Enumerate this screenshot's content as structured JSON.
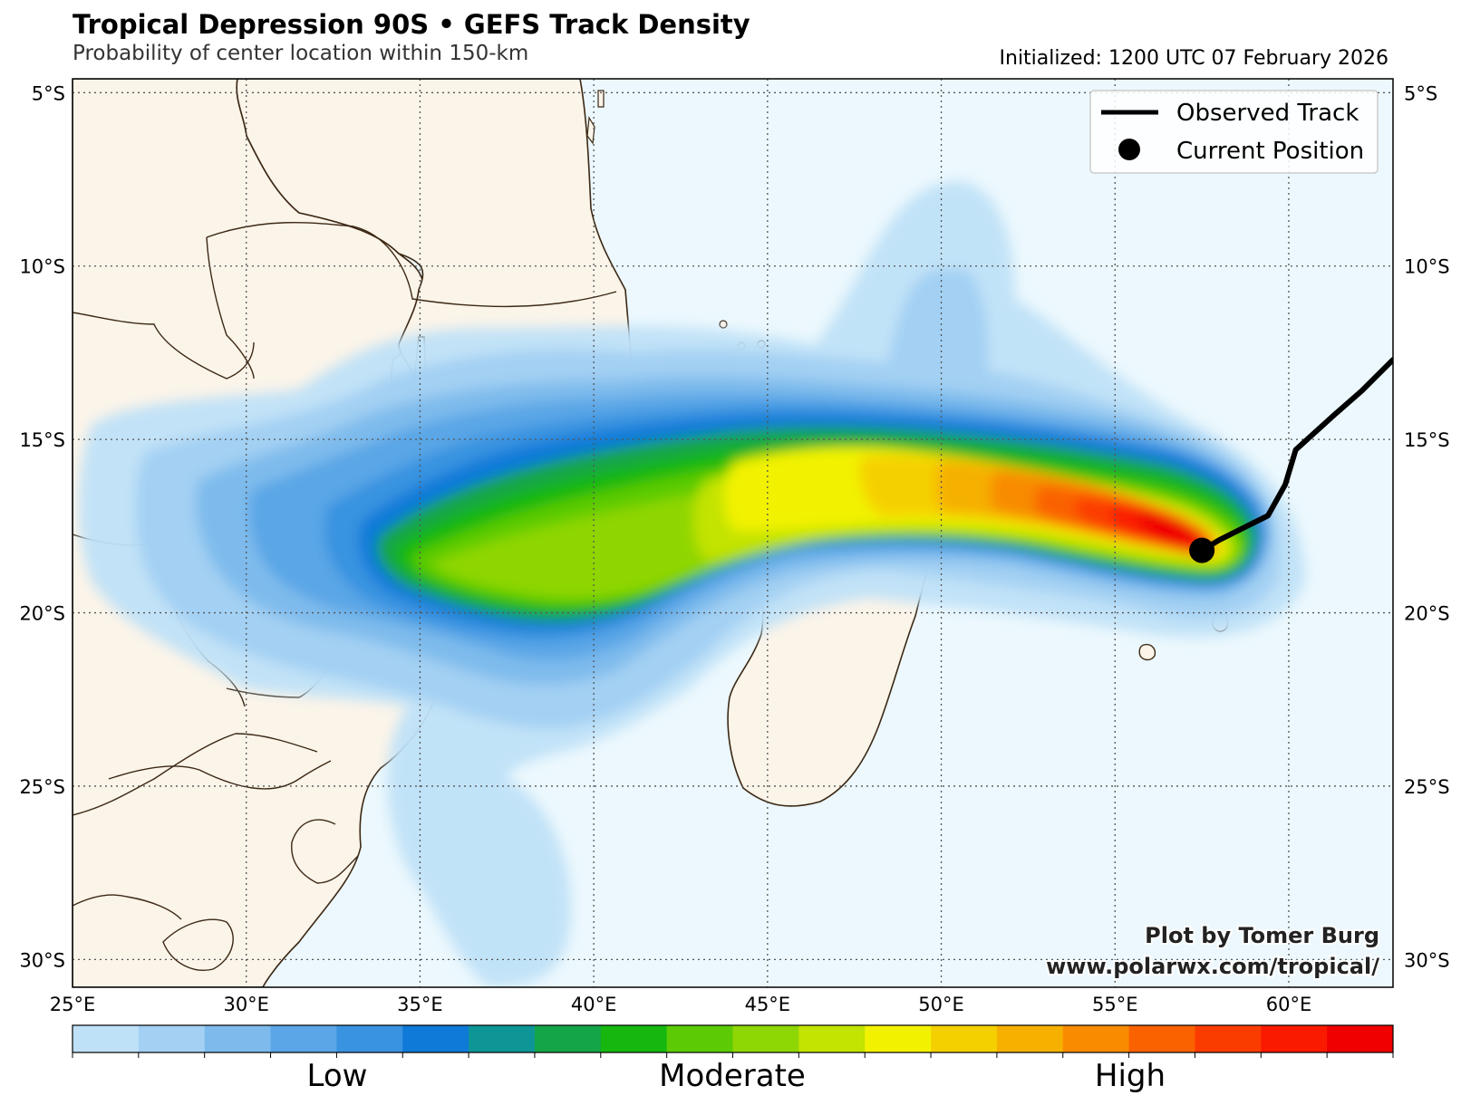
{
  "title": "Tropical Depression 90S • GEFS Track Density",
  "subtitle": "Probability of center location within 150-km",
  "initialized": "Initialized: 1200 UTC 07 February 2026",
  "credit": {
    "line1": "Plot by Tomer Burg",
    "line2": "www.polarwx.com/tropical/"
  },
  "legend": {
    "observed_track": "Observed Track",
    "current_position": "Current Position"
  },
  "lon_labels": [
    "25°E",
    "30°E",
    "35°E",
    "40°E",
    "45°E",
    "50°E",
    "55°E",
    "60°E"
  ],
  "lat_labels": [
    "5°S",
    "10°S",
    "15°S",
    "20°S",
    "25°S",
    "30°S"
  ],
  "colorbar": {
    "labels": {
      "low": "Low",
      "moderate": "Moderate",
      "high": "High"
    },
    "colors": [
      "#bfe1f8",
      "#a3d0f3",
      "#7ebbec",
      "#5aa6e6",
      "#3993e0",
      "#0f7ad8",
      "#0e9596",
      "#14a548",
      "#16b80f",
      "#5ccb05",
      "#8fd605",
      "#c3e300",
      "#f2f200",
      "#f5d000",
      "#f6b000",
      "#f88b00",
      "#fa6200",
      "#fb3c00",
      "#fa1a00",
      "#f00000"
    ]
  },
  "colors": {
    "ocean": "#ecf8fd",
    "land": "#fbf4e9",
    "coast": "#3b2814",
    "track": "#000000"
  },
  "map_extent": {
    "lon_min": 25,
    "lon_max": 63,
    "lat_min": -30.8,
    "lat_max": -4.6
  },
  "observed_track": [
    [
      63.0,
      -12.7
    ],
    [
      62.1,
      -13.6
    ],
    [
      61.3,
      -14.3
    ],
    [
      60.2,
      -15.3
    ],
    [
      59.9,
      -16.3
    ],
    [
      59.4,
      -17.2
    ],
    [
      58.8,
      -17.5
    ],
    [
      58.0,
      -17.9
    ],
    [
      57.5,
      -18.2
    ]
  ],
  "current_position": [
    57.5,
    -18.2
  ]
}
